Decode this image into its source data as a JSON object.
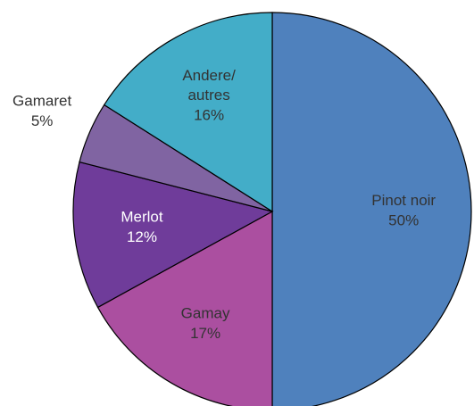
{
  "chart_data": {
    "type": "pie",
    "categories": [
      "Pinot noir",
      "Gamay",
      "Merlot",
      "Gamaret",
      "Andere/\nautres"
    ],
    "values": [
      50,
      17,
      12,
      5,
      16
    ],
    "value_labels": [
      "50%",
      "17%",
      "12%",
      "5%",
      "16%"
    ],
    "colors": [
      "#4f81bd",
      "#ab4fa0",
      "#6f3c9a",
      "#8064a2",
      "#43adc8"
    ]
  }
}
